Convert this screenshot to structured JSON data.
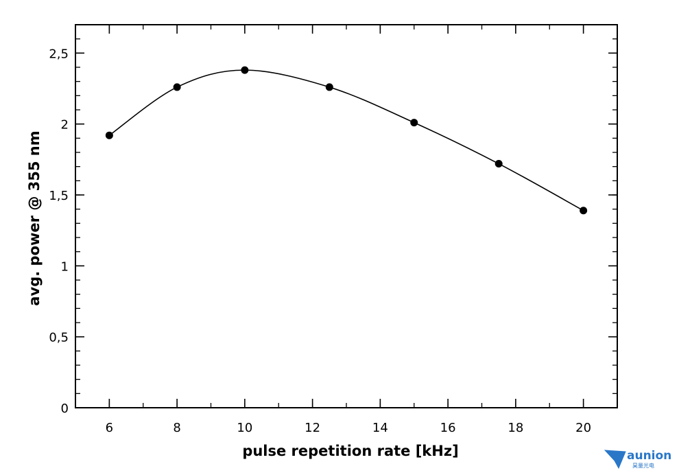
{
  "chart_data": {
    "type": "line",
    "xlabel": "pulse repetition rate [kHz]",
    "ylabel": "avg. power @ 355 nm",
    "xlim": [
      5,
      21
    ],
    "ylim": [
      0,
      2.7
    ],
    "x_ticks": [
      6,
      8,
      10,
      12,
      14,
      16,
      18,
      20
    ],
    "x_tick_labels": [
      "6",
      "8",
      "10",
      "12",
      "14",
      "16",
      "18",
      "20"
    ],
    "y_ticks": [
      0,
      0.5,
      1,
      1.5,
      2,
      2.5
    ],
    "y_tick_labels": [
      "0",
      "0,5",
      "1",
      "1,5",
      "2",
      "2,5"
    ],
    "x_minor_step": 1,
    "y_minor_step": 0.1,
    "grid": false,
    "series": [
      {
        "x": [
          6,
          8,
          10,
          12.5,
          15,
          17.5,
          20
        ],
        "y": [
          1.92,
          2.26,
          2.38,
          2.26,
          2.01,
          1.72,
          1.39
        ],
        "marker": "circle",
        "color": "#000000"
      }
    ]
  },
  "logo": {
    "name": "aunion",
    "subtitle": "昊量光电"
  }
}
